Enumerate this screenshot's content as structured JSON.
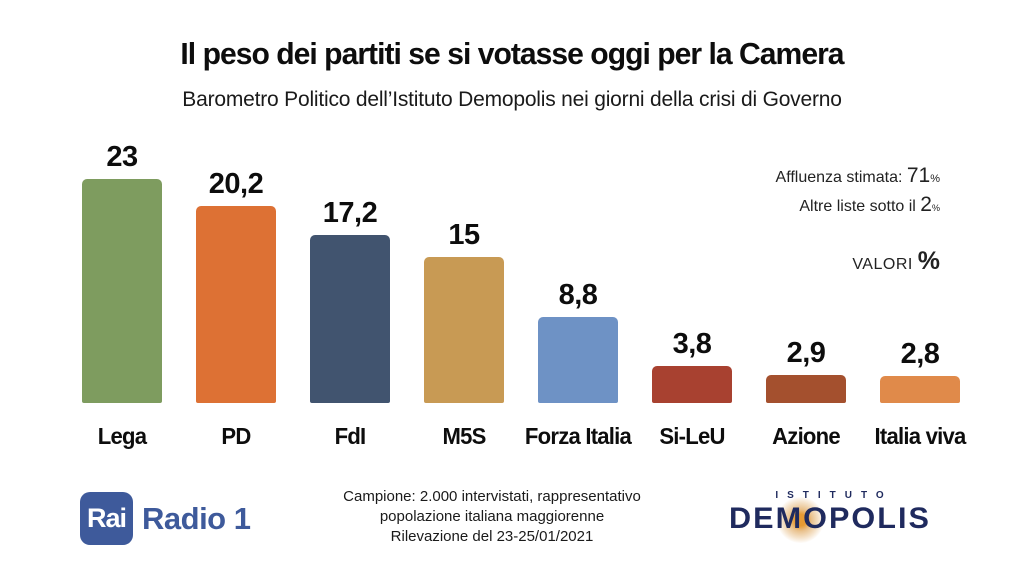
{
  "header": {
    "title": "Il peso dei partiti se si votasse oggi per la Camera",
    "subtitle": "Barometro Politico dell’Istituto Demopolis nei giorni della crisi di Governo"
  },
  "annotations": {
    "turnout_label": "Affluenza stimata: ",
    "turnout_value": "71",
    "turnout_pct": "%",
    "other_label": "Altre liste sotto il ",
    "other_value": "2",
    "other_pct": "%",
    "valori_label": "VALORI ",
    "valori_pct": "%"
  },
  "chart_data": {
    "type": "bar",
    "title": "Il peso dei partiti se si votasse oggi per la Camera",
    "subtitle": "Barometro Politico dell’Istituto Demopolis nei giorni della crisi di Governo",
    "categories": [
      "Lega",
      "PD",
      "FdI",
      "M5S",
      "Forza Italia",
      "Si-LeU",
      "Azione",
      "Italia viva"
    ],
    "values": [
      23,
      20.2,
      17.2,
      15,
      8.8,
      3.8,
      2.9,
      2.8
    ],
    "display_values": [
      "23",
      "20,2",
      "17,2",
      "15",
      "8,8",
      "3,8",
      "2,9",
      "2,8"
    ],
    "colors": [
      "#7E9C5F",
      "#DD7134",
      "#41546F",
      "#C89A54",
      "#6E92C5",
      "#A84130",
      "#A4502E",
      "#E08A4A"
    ],
    "unit": "%",
    "xlabel": "",
    "ylabel": "",
    "ylim": [
      0,
      25
    ],
    "grid": false,
    "legend": false,
    "axes_shown": false,
    "value_labels_shown": true,
    "notes": [
      "Affluenza stimata: 71%",
      "Altre liste sotto il 2%",
      "VALORI %"
    ]
  },
  "footer": {
    "rai_text": "Rai",
    "radio1_text": "Radio 1",
    "note_line1": "Campione: 2.000 intervistati, rappresentativo",
    "note_line2": "popolazione italiana maggiorenne",
    "note_line3": "Rilevazione del 23-25/01/2021",
    "istituto_text": "ISTITUTO",
    "demopolis_text": "DEMOPOLIS"
  }
}
